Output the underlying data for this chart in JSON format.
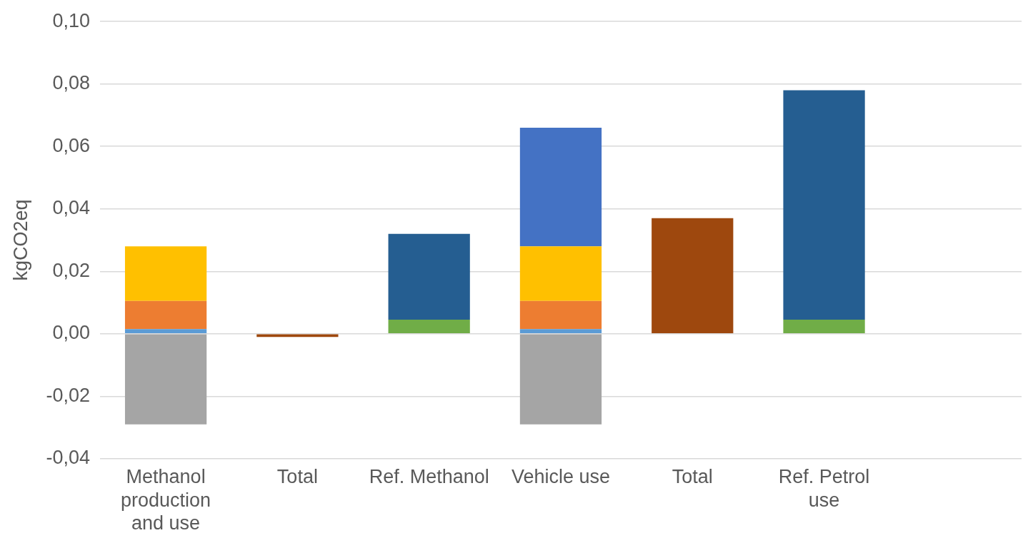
{
  "chart_data": {
    "type": "bar",
    "stacked": true,
    "ylabel": "kgCO2eq",
    "categories": [
      "Methanol production and use",
      "Total",
      "Ref. Methanol",
      "Vehicle use",
      "Total",
      "Ref. Petrol use",
      null
    ],
    "series": [
      {
        "color": "#5b9bd5",
        "values": [
          0.0015,
          null,
          null,
          0.0015,
          null,
          null,
          null
        ]
      },
      {
        "color": "#ed7d31",
        "values": [
          0.009,
          null,
          null,
          0.009,
          null,
          null,
          null
        ]
      },
      {
        "color": "#ffc000",
        "values": [
          0.0175,
          null,
          null,
          0.0175,
          null,
          null,
          null
        ]
      },
      {
        "color": "#4472c4",
        "values": [
          null,
          null,
          null,
          0.038,
          null,
          null,
          null
        ]
      },
      {
        "color": "#a5a5a5",
        "values": [
          -0.029,
          null,
          null,
          -0.029,
          null,
          null,
          null
        ]
      },
      {
        "color": "#70ad47",
        "values": [
          null,
          null,
          0.0045,
          null,
          null,
          0.0045,
          null
        ]
      },
      {
        "color": "#255e91",
        "values": [
          null,
          null,
          0.0275,
          null,
          null,
          0.0735,
          null
        ]
      },
      {
        "color": "#9e480e",
        "values": [
          null,
          -0.001,
          null,
          null,
          0.037,
          null,
          null
        ]
      }
    ],
    "ylim": [
      -0.04,
      0.1
    ],
    "yticks": [
      {
        "value": -0.04,
        "label": "-0,04"
      },
      {
        "value": -0.02,
        "label": "-0,02"
      },
      {
        "value": 0,
        "label": "0,00"
      },
      {
        "value": 0.02,
        "label": "0,02"
      },
      {
        "value": 0.04,
        "label": "0,04"
      },
      {
        "value": 0.06,
        "label": "0,06"
      },
      {
        "value": 0.08,
        "label": "0,08"
      },
      {
        "value": 0.1,
        "label": "0,10"
      }
    ],
    "grid": "y",
    "legend": false
  }
}
